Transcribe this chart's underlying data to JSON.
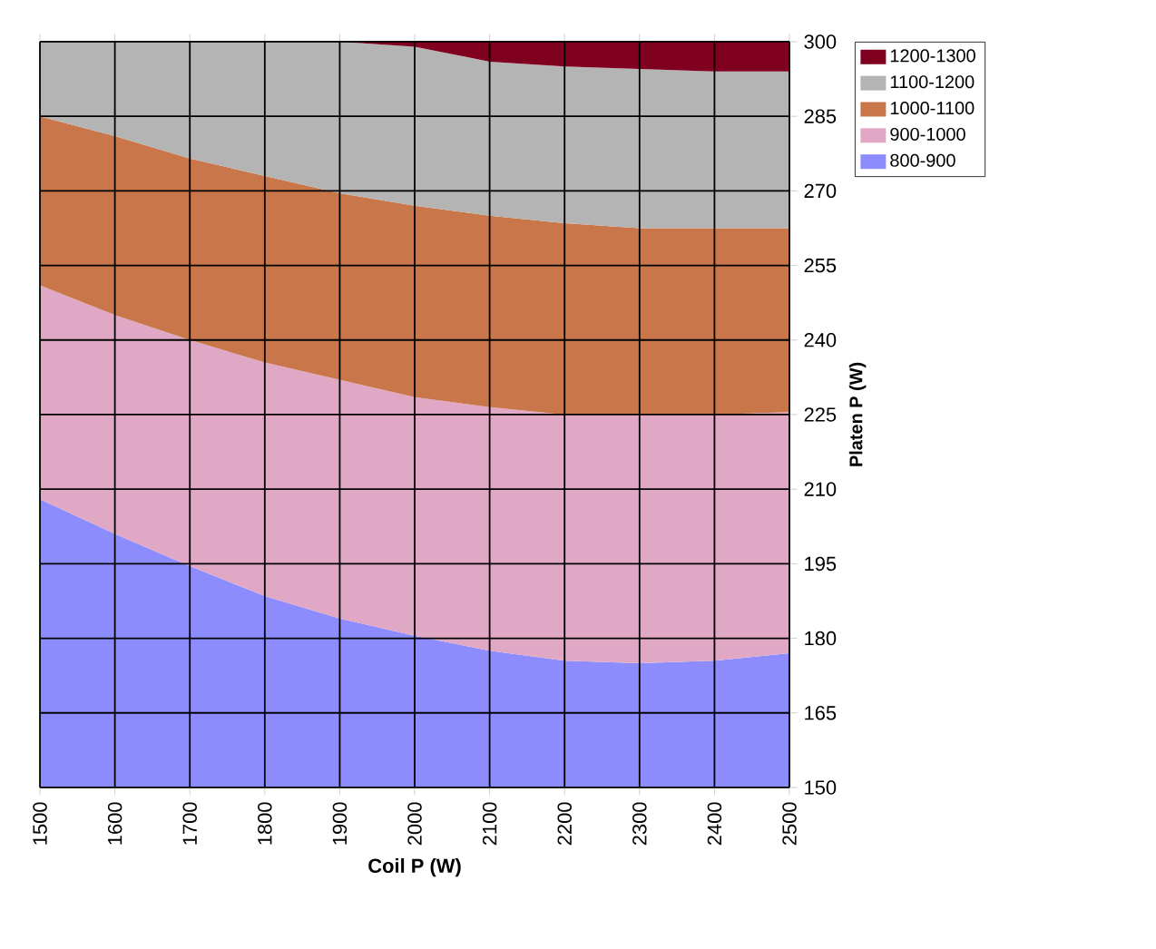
{
  "chart_data": {
    "type": "area",
    "xlabel": "Coil P (W)",
    "ylabel": "Platen P (W)",
    "x": [
      1500,
      1600,
      1700,
      1800,
      1900,
      2000,
      2100,
      2200,
      2300,
      2400,
      2500
    ],
    "xlim": [
      1500,
      2500
    ],
    "xticks": [
      1500,
      1600,
      1700,
      1800,
      1900,
      2000,
      2100,
      2200,
      2300,
      2400,
      2500
    ],
    "ylim": [
      150,
      300
    ],
    "yticks": [
      150,
      165,
      180,
      195,
      210,
      225,
      240,
      255,
      270,
      285,
      300
    ],
    "grid": true,
    "legend": "top right",
    "series": [
      {
        "name": "800-900",
        "color": "#8c8cff",
        "values": [
          208,
          201,
          194.5,
          188.5,
          184,
          180.5,
          177.5,
          175.5,
          175,
          175.5,
          177
        ]
      },
      {
        "name": "900-1000",
        "color": "#e0a8c4",
        "values": [
          251,
          245,
          240,
          235.5,
          232,
          228.5,
          226.5,
          225,
          225,
          225,
          225.5
        ]
      },
      {
        "name": "1000-1100",
        "color": "#c8764a",
        "values": [
          285,
          281,
          276.5,
          273,
          269.5,
          267,
          265,
          263.5,
          262.5,
          262.5,
          262.5
        ]
      },
      {
        "name": "1100-1200",
        "color": "#b4b4b4",
        "values": [
          300,
          300,
          300,
          300,
          300,
          299,
          296,
          295,
          294.5,
          294,
          294
        ]
      },
      {
        "name": "1200-1300",
        "color": "#800020",
        "values": [
          300,
          300,
          300,
          300,
          300,
          300,
          300,
          300,
          300,
          300,
          300
        ]
      }
    ]
  }
}
